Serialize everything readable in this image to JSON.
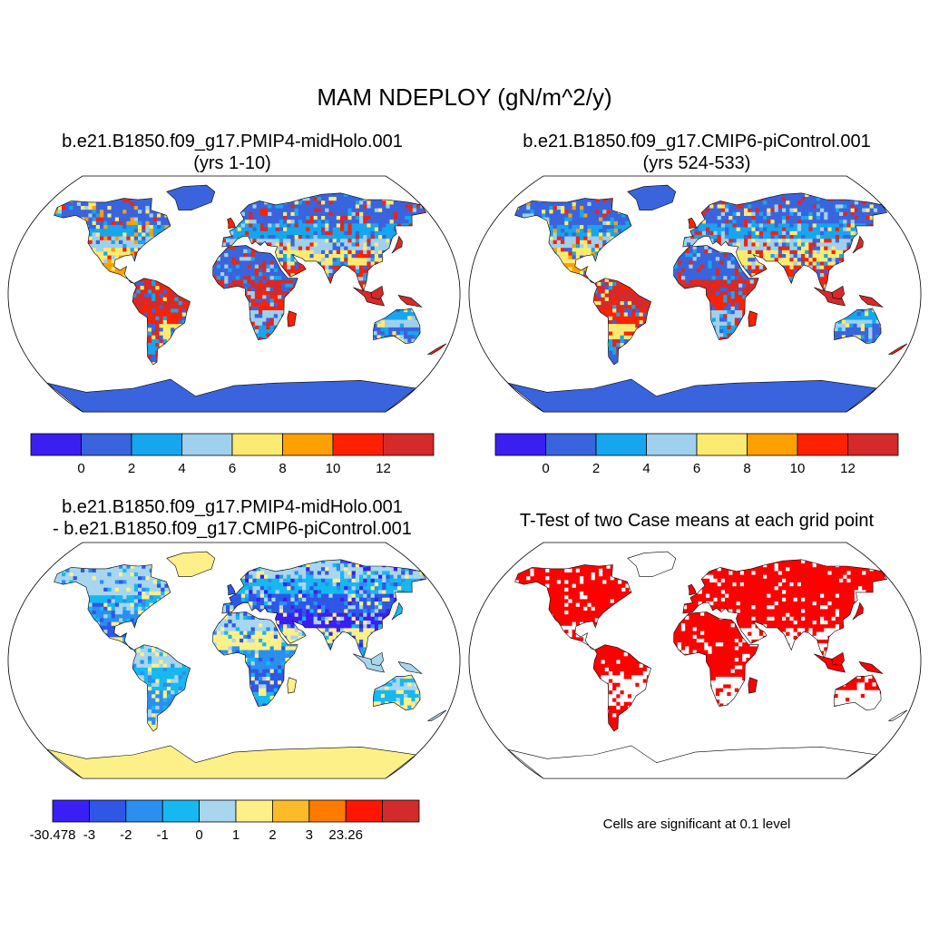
{
  "figure": {
    "title": "MAM NDEPLOY (gN/m^2/y)",
    "colors": {
      "land_line": "#000000",
      "sig_red": "#ff0000"
    }
  },
  "chart_data": [
    {
      "type": "heatmap",
      "title_line1": "b.e21.B1850.f09_g17.PMIP4-midHolo.001",
      "title_line2": "(yrs 1-10)",
      "colorbar": {
        "colors": [
          "#3b1ff0",
          "#3a64dd",
          "#16a6ef",
          "#9fd0ee",
          "#fbeb70",
          "#fea000",
          "#ff2000",
          "#d42a2a"
        ],
        "tick_labels": [
          "0",
          "2",
          "4",
          "6",
          "8",
          "10",
          "12"
        ]
      }
    },
    {
      "type": "heatmap",
      "title_line1": "b.e21.B1850.f09_g17.CMIP6-piControl.001",
      "title_line2": "(yrs 524-533)",
      "colorbar": {
        "colors": [
          "#3b1ff0",
          "#3a64dd",
          "#16a6ef",
          "#9fd0ee",
          "#fbeb70",
          "#fea000",
          "#ff2000",
          "#d42a2a"
        ],
        "tick_labels": [
          "0",
          "2",
          "4",
          "6",
          "8",
          "10",
          "12"
        ]
      }
    },
    {
      "type": "heatmap",
      "title_line1": "b.e21.B1850.f09_g17.PMIP4-midHolo.001",
      "title_line2": "- b.e21.B1850.f09_g17.CMIP6-piControl.001",
      "colorbar": {
        "colors": [
          "#3a1ff5",
          "#2f57e6",
          "#2b8ff0",
          "#16b8f2",
          "#a8d6ee",
          "#fdf089",
          "#fdbb2a",
          "#ff7a00",
          "#ff1600",
          "#d32a2a"
        ],
        "tick_labels": [
          "-30.478",
          "-3",
          "-2",
          "-1",
          "0",
          "1",
          "2",
          "3",
          "23.26"
        ]
      }
    },
    {
      "type": "heatmap",
      "title_line1": "T-Test of two Case means at each grid point",
      "note": "Cells are significant at 0.1 level"
    }
  ]
}
